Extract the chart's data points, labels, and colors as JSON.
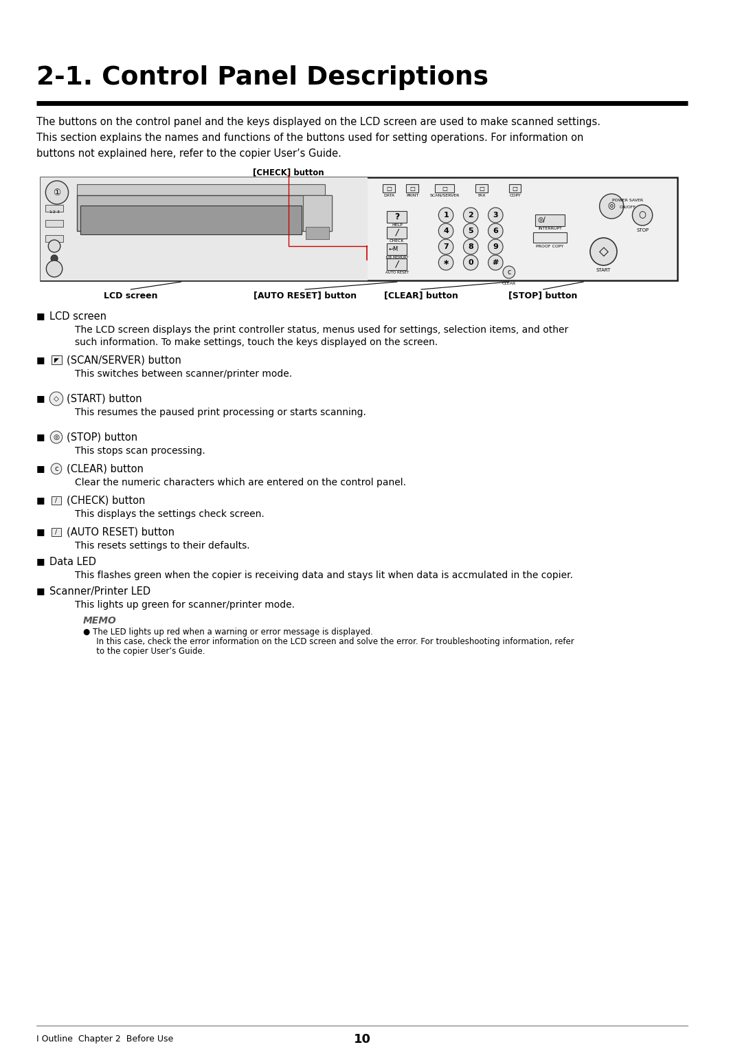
{
  "title": "2-1. Control Panel Descriptions",
  "intro_line1": "The buttons on the control panel and the keys displayed on the LCD screen are used to make scanned settings.",
  "intro_line2": "This section explains the names and functions of the buttons used for setting operations. For information on",
  "intro_line3": "buttons not explained here, refer to the copier User’s Guide.",
  "check_button_label": "[CHECK] button",
  "lcd_label": "LCD screen",
  "auto_reset_label": "[AUTO RESET] button",
  "clear_label": "[CLEAR] button",
  "stop_label": "[STOP] button",
  "bullet_items": [
    {
      "icon": "lcd",
      "header": "LCD screen",
      "body1": "The LCD screen displays the print controller status, menus used for settings, selection items, and other",
      "body2": "such information. To make settings, touch the keys displayed on the screen.",
      "extra": 8
    },
    {
      "icon": "scan_server",
      "header": "(SCAN/SERVER) button",
      "body1": "This switches between scanner/printer mode.",
      "body2": "",
      "extra": 18
    },
    {
      "icon": "start",
      "header": "(START) button",
      "body1": "This resumes the paused print processing or starts scanning.",
      "body2": "",
      "extra": 18
    },
    {
      "icon": "stop_btn",
      "header": "(STOP) button",
      "body1": "This stops scan processing.",
      "body2": "",
      "extra": 8
    },
    {
      "icon": "clear",
      "header": "(CLEAR) button",
      "body1": "Clear the numeric characters which are entered on the control panel.",
      "body2": "",
      "extra": 8
    },
    {
      "icon": "check",
      "header": "(CHECK) button",
      "body1": "This displays the settings check screen.",
      "body2": "",
      "extra": 8
    },
    {
      "icon": "auto_reset",
      "header": "(AUTO RESET) button",
      "body1": "This resets settings to their defaults.",
      "body2": "",
      "extra": 5
    },
    {
      "icon": "data_led",
      "header": "Data LED",
      "body1": "This flashes green when the copier is receiving data and stays lit when data is accmulated in the copier.",
      "body2": "",
      "extra": 5
    },
    {
      "icon": "scanner_led",
      "header": "Scanner/Printer LED",
      "body1": "This lights up green for scanner/printer mode.",
      "body2": "",
      "extra": 5
    }
  ],
  "memo_title": "MEMO",
  "memo_line1": "● The LED lights up red when a warning or error message is displayed.",
  "memo_line2": "   In this case, check the error information on the LCD screen and solve the error. For troubleshooting information, refer",
  "memo_line3": "   to the copier User’s Guide.",
  "footer_left": "I Outline  Chapter 2  Before Use",
  "footer_page": "10",
  "bg_color": "#ffffff",
  "text_color": "#000000",
  "title_color": "#000000",
  "red_line_color": "#cc0000"
}
